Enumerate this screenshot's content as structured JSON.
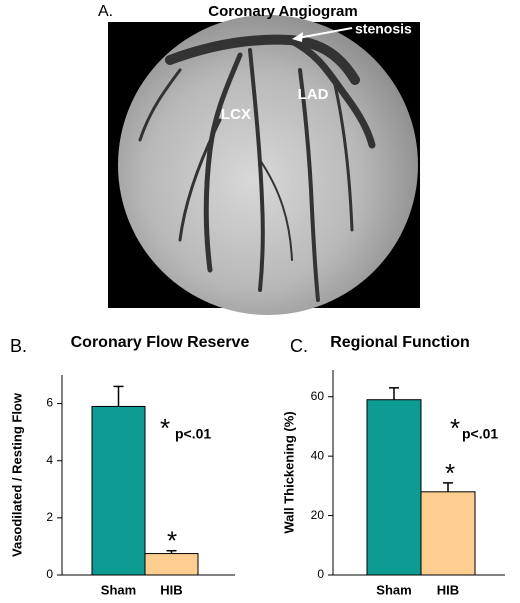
{
  "panel_a": {
    "label": "A.",
    "title": "Coronary Angiogram",
    "annotations": [
      "stenosis",
      "LCX",
      "LAD"
    ]
  },
  "chart_data": [
    {
      "type": "bar",
      "panel_label": "B.",
      "title": "Coronary Flow Reserve",
      "ylabel": "Vasodilated / Resting Flow",
      "categories": [
        "Sham",
        "HIB"
      ],
      "values": [
        5.9,
        0.75
      ],
      "errors": [
        0.7,
        0.1
      ],
      "colors": [
        "#0e9b94",
        "#fdce8f"
      ],
      "ylim": [
        0,
        7
      ],
      "yticks": [
        0,
        2,
        4,
        6
      ],
      "annotations": [
        "*",
        "p<.01",
        "*"
      ]
    },
    {
      "type": "bar",
      "panel_label": "C.",
      "title": "Regional Function",
      "ylabel": "Wall Thickening (%)",
      "categories": [
        "Sham",
        "HIB"
      ],
      "values": [
        59,
        28
      ],
      "errors": [
        4,
        3
      ],
      "colors": [
        "#0e9b94",
        "#fdce8f"
      ],
      "ylim": [
        0,
        69
      ],
      "yticks": [
        0,
        20,
        40,
        60
      ],
      "annotations": [
        "*",
        "p<.01",
        "*"
      ]
    }
  ]
}
